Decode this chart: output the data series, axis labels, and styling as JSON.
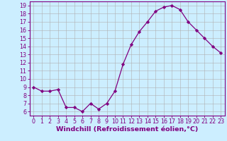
{
  "x": [
    0,
    1,
    2,
    3,
    4,
    5,
    6,
    7,
    8,
    9,
    10,
    11,
    12,
    13,
    14,
    15,
    16,
    17,
    18,
    19,
    20,
    21,
    22,
    23
  ],
  "y": [
    9.0,
    8.5,
    8.5,
    8.7,
    6.5,
    6.5,
    6.0,
    7.0,
    6.3,
    7.0,
    8.5,
    11.8,
    14.2,
    15.8,
    17.0,
    18.3,
    18.8,
    19.0,
    18.5,
    17.0,
    16.0,
    15.0,
    14.0,
    13.2
  ],
  "line_color": "#800080",
  "marker": "D",
  "marker_size": 2.2,
  "bg_color": "#cceeff",
  "grid_color": "#b0b0b0",
  "xlabel": "Windchill (Refroidissement éolien,°C)",
  "ylabel": "",
  "ylim": [
    5.5,
    19.5
  ],
  "xlim": [
    -0.5,
    23.5
  ],
  "yticks": [
    6,
    7,
    8,
    9,
    10,
    11,
    12,
    13,
    14,
    15,
    16,
    17,
    18,
    19
  ],
  "xticks": [
    0,
    1,
    2,
    3,
    4,
    5,
    6,
    7,
    8,
    9,
    10,
    11,
    12,
    13,
    14,
    15,
    16,
    17,
    18,
    19,
    20,
    21,
    22,
    23
  ],
  "tick_fontsize": 5.8,
  "xlabel_fontsize": 6.8,
  "spine_color": "#800080"
}
